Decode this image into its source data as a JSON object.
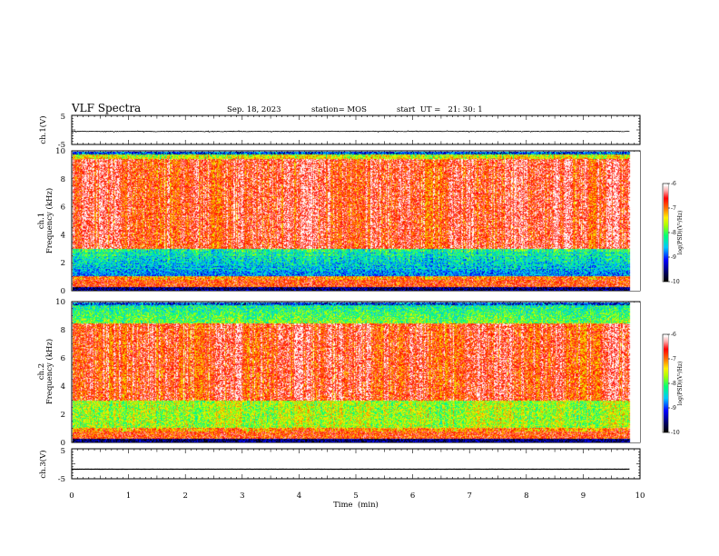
{
  "header": {
    "title": "VLF Spectra",
    "date": "Sep. 18, 2023",
    "station": "station= MOS",
    "start": "start  UT =   21: 30: 1"
  },
  "chart_data": [
    {
      "type": "line",
      "panel": "ch1-waveform",
      "ylabel": "ch.1(V)",
      "ylim": [
        -5,
        5
      ],
      "y_ticks": [
        "5",
        "-5"
      ],
      "xlim": [
        0,
        10
      ],
      "trace_level": -0.5,
      "data_end_min": 9.82
    },
    {
      "type": "heatmap",
      "panel": "ch1-spectrogram",
      "ylabel_line1": "ch.1",
      "ylabel_line2": "Frequency (kHz)",
      "ylim": [
        0,
        10
      ],
      "y_ticks": [
        "0",
        "2",
        "4",
        "6",
        "8",
        "10"
      ],
      "xlim": [
        0,
        10
      ],
      "data_end_min": 9.82,
      "colorbar": {
        "label": "log(PSD)(V²/Hz)",
        "range": [
          -10,
          -6
        ],
        "ticks": [
          "-6",
          "-7",
          "-8",
          "-9",
          "-10"
        ]
      },
      "intense_band_khz": [
        3,
        9.5
      ]
    },
    {
      "type": "heatmap",
      "panel": "ch2-spectrogram",
      "ylabel_line1": "ch.2",
      "ylabel_line2": "Frequency (kHz)",
      "ylim": [
        0,
        10
      ],
      "y_ticks": [
        "0",
        "2",
        "4",
        "6",
        "8",
        "10"
      ],
      "xlim": [
        0,
        10
      ],
      "data_end_min": 9.82,
      "colorbar": {
        "label": "log(PSD)(V²/Hz)",
        "range": [
          -10,
          -6
        ],
        "ticks": [
          "-6",
          "-7",
          "-8",
          "-9",
          "-10"
        ]
      },
      "intense_band_khz": [
        3,
        8.5
      ]
    },
    {
      "type": "line",
      "panel": "ch3-waveform",
      "ylabel": "ch.3(V)",
      "ylim": [
        -5,
        5
      ],
      "y_ticks": [
        "5",
        "-5"
      ],
      "xlim": [
        0,
        10
      ],
      "trace_level": -1.8,
      "data_end_min": 9.82,
      "xlabel": "Time  (min)",
      "x_ticks": [
        "0",
        "1",
        "2",
        "3",
        "4",
        "5",
        "6",
        "7",
        "8",
        "9",
        "10"
      ]
    }
  ],
  "colors": {
    "axis": "#000000",
    "background": "#ffffff"
  }
}
